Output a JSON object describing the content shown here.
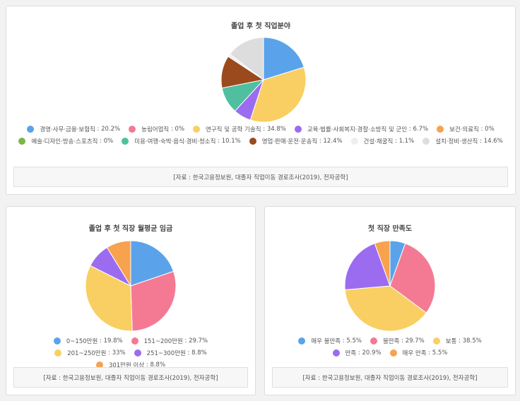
{
  "chart_data": [
    {
      "type": "pie",
      "title": "졸업 후 첫 직업분야",
      "categories": [
        "경영·사무·금융·보험직",
        "농림어업직",
        "연구직 및 공학 기술직",
        "교육·법률·사회복지·경찰·소방직 및 군인",
        "보건·의료직",
        "예술·디자인·방송·스포츠직",
        "미용·여행·숙박·음식·경비·청소직",
        "영업·판매·운전·운송직",
        "건설·채굴직",
        "설치·정비·생산직"
      ],
      "values": [
        20.2,
        0,
        34.8,
        6.7,
        0,
        0,
        10.1,
        12.4,
        1.1,
        14.6
      ],
      "value_labels": [
        "20.2%",
        "0%",
        "34.8%",
        "6.7%",
        "0%",
        "0%",
        "10.1%",
        "12.4%",
        "1.1%",
        "14.6%"
      ],
      "colors": [
        "#5aa3ea",
        "#f47a94",
        "#f9cf63",
        "#9b6cf0",
        "#f7a24f",
        "#7ab648",
        "#4fbf9f",
        "#9b4a1e",
        "#eeeeee",
        "#dddddd"
      ],
      "source": "[자료 : 한국고용정보원, 대졸자 직업이동 경로조사(2019), 전자공학]"
    },
    {
      "type": "pie",
      "title": "졸업 후 첫 직장 월평균 임금",
      "categories": [
        "0~150만원",
        "151~200만원",
        "201~250만원",
        "251~300만원",
        "301만원 이상"
      ],
      "values": [
        19.8,
        29.7,
        33,
        8.8,
        8.8
      ],
      "value_labels": [
        "19.8%",
        "29.7%",
        "33%",
        "8.8%",
        "8.8%"
      ],
      "colors": [
        "#5aa3ea",
        "#f47a94",
        "#f9cf63",
        "#9b6cf0",
        "#f7a24f"
      ],
      "source": "[자료 : 한국고용정보원, 대졸자 직업이동 경로조사(2019), 전자공학]"
    },
    {
      "type": "pie",
      "title": "첫 직장 만족도",
      "categories": [
        "매우 불만족",
        "불만족",
        "보통",
        "만족",
        "매우 만족"
      ],
      "values": [
        5.5,
        29.7,
        38.5,
        20.9,
        5.5
      ],
      "value_labels": [
        "5.5%",
        "29.7%",
        "38.5%",
        "20.9%",
        "5.5%"
      ],
      "colors": [
        "#5aa3ea",
        "#f47a94",
        "#f9cf63",
        "#9b6cf0",
        "#f7a24f"
      ],
      "source": "[자료 : 한국고용정보원, 대졸자 직업이동 경로조사(2019), 전자공학]"
    }
  ]
}
